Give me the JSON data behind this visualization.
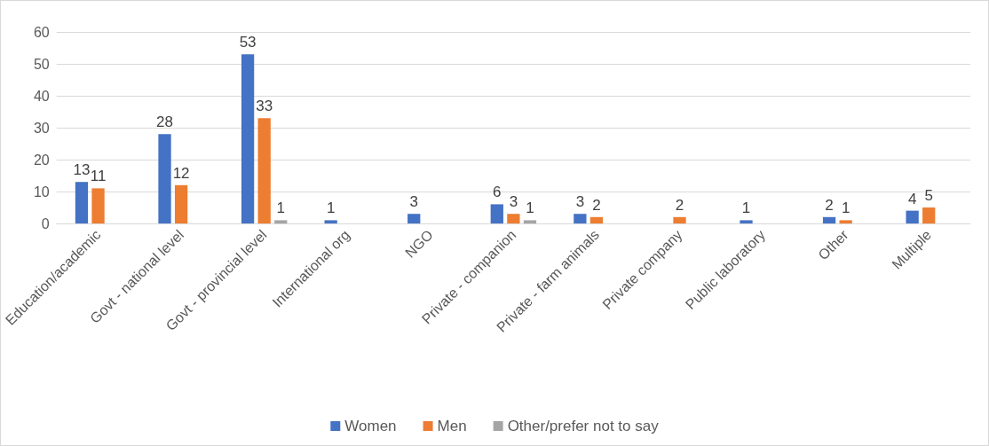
{
  "chart_data": {
    "type": "bar",
    "categories": [
      "Education/academic",
      "Govt - national level",
      "Govt - provincial level",
      "International org",
      "NGO",
      "Private - companion",
      "Private - farm animals",
      "Private company",
      "Public laboratory",
      "Other",
      "Multiple"
    ],
    "series": [
      {
        "name": "Women",
        "color": "#4472c4",
        "values": [
          13,
          28,
          53,
          1,
          3,
          6,
          3,
          null,
          1,
          2,
          4
        ]
      },
      {
        "name": "Men",
        "color": "#ed7d31",
        "values": [
          11,
          12,
          33,
          null,
          null,
          3,
          2,
          2,
          null,
          1,
          5
        ]
      },
      {
        "name": "Other/prefer not to say",
        "color": "#a5a5a5",
        "values": [
          null,
          null,
          1,
          null,
          null,
          1,
          null,
          null,
          null,
          null,
          null
        ]
      }
    ],
    "ylim": [
      0,
      60
    ],
    "yticks": [
      0,
      10,
      20,
      30,
      40,
      50,
      60
    ],
    "grid": "y",
    "legend": "bottom",
    "data_labels": true
  }
}
